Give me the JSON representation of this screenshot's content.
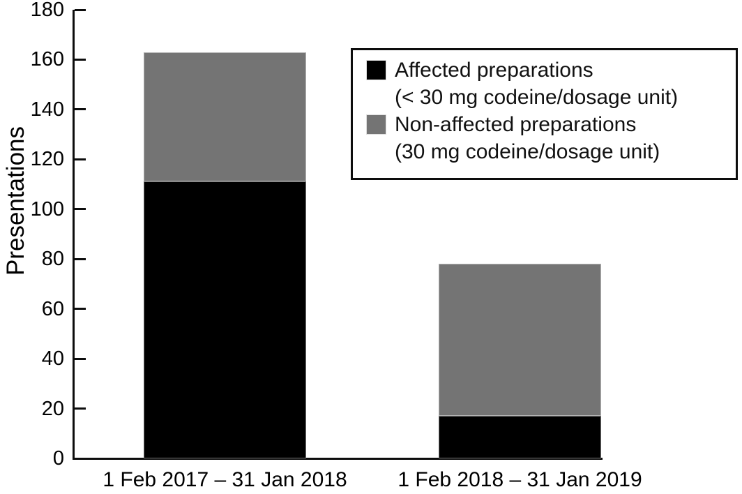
{
  "figure": {
    "background": "#ffffff",
    "axis_color": "#0d0d0d"
  },
  "chart_data": {
    "type": "bar",
    "stacked": true,
    "title": "",
    "xlabel": "",
    "ylabel": "Presentations",
    "ylim": [
      0,
      180
    ],
    "yticks": [
      0,
      20,
      40,
      60,
      80,
      100,
      120,
      140,
      160,
      180
    ],
    "categories": [
      "1 Feb 2017 – 31 Jan 2018",
      "1 Feb 2018 – 31 Jan 2019"
    ],
    "series": [
      {
        "name": "Affected preparations",
        "qualifier": "(< 30 mg codeine/dosage unit)",
        "color": "#000000",
        "values": [
          111,
          17
        ]
      },
      {
        "name": "Non-affected preparations",
        "qualifier": "(30 mg codeine/dosage unit)",
        "color": "#747474",
        "values": [
          52,
          61
        ]
      }
    ],
    "grid": false,
    "legend_position": "upper right"
  }
}
